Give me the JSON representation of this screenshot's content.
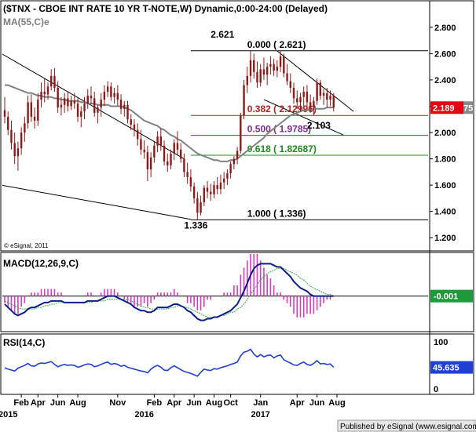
{
  "header": {
    "title": "($TNX - CBOE INT RATE 10 YR T-NOTE,W) Dynamic,0:00-24:00 (Delayed)",
    "ma_label": "MA(55,C)e",
    "watermark": "© eSignal, 2011",
    "footer": "Published by eSignal (www.esignal.com)"
  },
  "colors": {
    "up": "#8b1a1a",
    "down": "#8b1a1a",
    "ma": "#808080",
    "macd": "#0b1e8c",
    "signal": "#3ea64a",
    "hist": "#d13fbf",
    "rsi": "#1f3fd6",
    "price_tag": "#e60012",
    "fib0": "#000000",
    "fib382": "#b22222",
    "fib500": "#7b2d8c",
    "fib618": "#1a8c1a",
    "fib100": "#000000"
  },
  "chart_data": [
    {
      "type": "candlestick",
      "panel": "price",
      "ylim": [
        1.1,
        2.9
      ],
      "yticks": [
        "2.800",
        "2.600",
        "2.400",
        "2.200",
        "2.000",
        "1.800",
        "1.600",
        "1.400",
        "1.200"
      ],
      "last_price": "2.189",
      "ohlc": [
        [
          2.17,
          2.27,
          2.07,
          2.12
        ],
        [
          2.12,
          2.16,
          1.98,
          2.02
        ],
        [
          2.02,
          2.09,
          1.87,
          1.92
        ],
        [
          1.92,
          2.0,
          1.76,
          1.82
        ],
        [
          1.82,
          1.93,
          1.71,
          1.88
        ],
        [
          1.88,
          2.04,
          1.83,
          2.0
        ],
        [
          2.0,
          2.12,
          1.93,
          2.07
        ],
        [
          2.07,
          2.28,
          2.03,
          2.23
        ],
        [
          2.23,
          2.29,
          2.08,
          2.12
        ],
        [
          2.12,
          2.19,
          2.03,
          2.09
        ],
        [
          2.09,
          2.3,
          2.05,
          2.25
        ],
        [
          2.25,
          2.38,
          2.19,
          2.31
        ],
        [
          2.31,
          2.41,
          2.23,
          2.29
        ],
        [
          2.29,
          2.38,
          2.25,
          2.35
        ],
        [
          2.35,
          2.48,
          2.32,
          2.43
        ],
        [
          2.43,
          2.49,
          2.31,
          2.34
        ],
        [
          2.34,
          2.39,
          2.15,
          2.19
        ],
        [
          2.19,
          2.27,
          2.13,
          2.21
        ],
        [
          2.21,
          2.3,
          2.15,
          2.26
        ],
        [
          2.26,
          2.31,
          2.16,
          2.2
        ],
        [
          2.2,
          2.28,
          2.17,
          2.24
        ],
        [
          2.24,
          2.3,
          2.18,
          2.22
        ],
        [
          2.22,
          2.26,
          2.08,
          2.12
        ],
        [
          2.12,
          2.2,
          2.04,
          2.16
        ],
        [
          2.16,
          2.27,
          2.1,
          2.22
        ],
        [
          2.22,
          2.33,
          2.18,
          2.28
        ],
        [
          2.28,
          2.35,
          2.22,
          2.26
        ],
        [
          2.26,
          2.31,
          2.12,
          2.15
        ],
        [
          2.15,
          2.21,
          2.07,
          2.19
        ],
        [
          2.19,
          2.3,
          2.12,
          2.25
        ],
        [
          2.25,
          2.36,
          2.2,
          2.31
        ],
        [
          2.31,
          2.39,
          2.27,
          2.35
        ],
        [
          2.35,
          2.38,
          2.24,
          2.27
        ],
        [
          2.27,
          2.34,
          2.22,
          2.3
        ],
        [
          2.3,
          2.36,
          2.2,
          2.25
        ],
        [
          2.25,
          2.29,
          2.14,
          2.18
        ],
        [
          2.18,
          2.24,
          2.12,
          2.21
        ],
        [
          2.21,
          2.24,
          2.07,
          2.1
        ],
        [
          2.1,
          2.14,
          2.02,
          2.06
        ],
        [
          2.06,
          2.1,
          1.97,
          2.02
        ],
        [
          2.02,
          2.07,
          1.9,
          1.95
        ],
        [
          1.95,
          2.02,
          1.83,
          1.87
        ],
        [
          1.87,
          1.94,
          1.8,
          1.85
        ],
        [
          1.85,
          1.9,
          1.63,
          1.72
        ],
        [
          1.72,
          1.85,
          1.66,
          1.81
        ],
        [
          1.81,
          1.93,
          1.77,
          1.9
        ],
        [
          1.9,
          2.01,
          1.85,
          1.97
        ],
        [
          1.97,
          2.03,
          1.86,
          1.9
        ],
        [
          1.9,
          1.94,
          1.75,
          1.78
        ],
        [
          1.78,
          1.84,
          1.7,
          1.75
        ],
        [
          1.75,
          1.87,
          1.72,
          1.84
        ],
        [
          1.84,
          1.95,
          1.79,
          1.92
        ],
        [
          1.92,
          2.01,
          1.83,
          1.87
        ],
        [
          1.87,
          1.92,
          1.77,
          1.8
        ],
        [
          1.8,
          1.84,
          1.66,
          1.7
        ],
        [
          1.7,
          1.77,
          1.61,
          1.66
        ],
        [
          1.66,
          1.72,
          1.55,
          1.59
        ],
        [
          1.59,
          1.62,
          1.46,
          1.5
        ],
        [
          1.5,
          1.55,
          1.34,
          1.39
        ],
        [
          1.39,
          1.52,
          1.37,
          1.47
        ],
        [
          1.47,
          1.6,
          1.44,
          1.58
        ],
        [
          1.58,
          1.63,
          1.5,
          1.55
        ],
        [
          1.55,
          1.61,
          1.48,
          1.53
        ],
        [
          1.53,
          1.63,
          1.5,
          1.6
        ],
        [
          1.6,
          1.66,
          1.53,
          1.57
        ],
        [
          1.57,
          1.68,
          1.53,
          1.62
        ],
        [
          1.62,
          1.7,
          1.57,
          1.65
        ],
        [
          1.65,
          1.72,
          1.6,
          1.69
        ],
        [
          1.69,
          1.78,
          1.65,
          1.76
        ],
        [
          1.76,
          1.82,
          1.72,
          1.8
        ],
        [
          1.8,
          1.89,
          1.76,
          1.86
        ],
        [
          1.86,
          2.15,
          1.84,
          2.13
        ],
        [
          2.13,
          2.4,
          2.1,
          2.36
        ],
        [
          2.36,
          2.5,
          2.3,
          2.43
        ],
        [
          2.43,
          2.62,
          2.38,
          2.55
        ],
        [
          2.55,
          2.6,
          2.41,
          2.46
        ],
        [
          2.46,
          2.54,
          2.34,
          2.38
        ],
        [
          2.38,
          2.52,
          2.35,
          2.48
        ],
        [
          2.48,
          2.57,
          2.4,
          2.44
        ],
        [
          2.44,
          2.53,
          2.36,
          2.5
        ],
        [
          2.5,
          2.58,
          2.44,
          2.52
        ],
        [
          2.52,
          2.56,
          2.43,
          2.47
        ],
        [
          2.47,
          2.55,
          2.42,
          2.5
        ],
        [
          2.5,
          2.62,
          2.46,
          2.58
        ],
        [
          2.58,
          2.6,
          2.42,
          2.45
        ],
        [
          2.45,
          2.52,
          2.36,
          2.39
        ],
        [
          2.39,
          2.45,
          2.3,
          2.34
        ],
        [
          2.34,
          2.38,
          2.22,
          2.26
        ],
        [
          2.26,
          2.32,
          2.18,
          2.23
        ],
        [
          2.23,
          2.3,
          2.16,
          2.27
        ],
        [
          2.27,
          2.35,
          2.2,
          2.31
        ],
        [
          2.31,
          2.36,
          2.19,
          2.23
        ],
        [
          2.23,
          2.29,
          2.15,
          2.19
        ],
        [
          2.19,
          2.27,
          2.13,
          2.24
        ],
        [
          2.24,
          2.41,
          2.21,
          2.38
        ],
        [
          2.38,
          2.4,
          2.25,
          2.28
        ],
        [
          2.28,
          2.33,
          2.21,
          2.3
        ],
        [
          2.3,
          2.34,
          2.19,
          2.25
        ],
        [
          2.25,
          2.32,
          2.2,
          2.28
        ],
        [
          2.28,
          2.3,
          2.16,
          2.19
        ]
      ],
      "ma": [
        2.36,
        2.36,
        2.35,
        2.34,
        2.33,
        2.32,
        2.31,
        2.3,
        2.3,
        2.29,
        2.28,
        2.28,
        2.27,
        2.27,
        2.27,
        2.26,
        2.26,
        2.25,
        2.25,
        2.24,
        2.24,
        2.24,
        2.24,
        2.23,
        2.23,
        2.22,
        2.22,
        2.22,
        2.21,
        2.21,
        2.21,
        2.21,
        2.2,
        2.2,
        2.2,
        2.2,
        2.19,
        2.18,
        2.17,
        2.15,
        2.13,
        2.11,
        2.09,
        2.08,
        2.07,
        2.06,
        2.05,
        2.03,
        2.02,
        2.0,
        1.98,
        1.97,
        1.95,
        1.94,
        1.92,
        1.9,
        1.88,
        1.86,
        1.84,
        1.83,
        1.82,
        1.81,
        1.8,
        1.79,
        1.79,
        1.78,
        1.78,
        1.78,
        1.79,
        1.79,
        1.8,
        1.82,
        1.84,
        1.86,
        1.88,
        1.9,
        1.92,
        1.94,
        1.96,
        1.99,
        2.01,
        2.03,
        2.05,
        2.07,
        2.09,
        2.11,
        2.13,
        2.14,
        2.15,
        2.16,
        2.17,
        2.17,
        2.17,
        2.18,
        2.18,
        2.18,
        2.18,
        2.19,
        2.19,
        2.19
      ],
      "fib_levels": [
        {
          "label": "0.000 ( 2.621)",
          "value": 2.621,
          "color": "#000000"
        },
        {
          "label": "0.382 ( 2.12996)",
          "value": 2.13,
          "color": "#b22222"
        },
        {
          "label": "0.500 ( 1.9785)",
          "value": 1.9785,
          "color": "#7b2d8c"
        },
        {
          "label": "0.618 ( 1.82687)",
          "value": 1.82687,
          "color": "#1a8c1a"
        },
        {
          "label": "1.000 ( 1.336)",
          "value": 1.336,
          "color": "#000000"
        }
      ],
      "annotations": [
        "2.621",
        "1.336",
        "2.103"
      ],
      "axis_tag_fragment": "75"
    },
    {
      "type": "macd",
      "panel": "macd",
      "title": "MACD(12,26,9,C)",
      "last_value": "-0.001",
      "macd": [
        -0.05,
        -0.07,
        -0.09,
        -0.11,
        -0.12,
        -0.11,
        -0.1,
        -0.08,
        -0.07,
        -0.07,
        -0.06,
        -0.05,
        -0.04,
        -0.04,
        -0.03,
        -0.03,
        -0.03,
        -0.03,
        -0.04,
        -0.04,
        -0.04,
        -0.04,
        -0.04,
        -0.04,
        -0.04,
        -0.03,
        -0.03,
        -0.03,
        -0.03,
        -0.02,
        -0.01,
        0.0,
        0.0,
        -0.0,
        -0.01,
        -0.02,
        -0.03,
        -0.04,
        -0.05,
        -0.07,
        -0.08,
        -0.09,
        -0.09,
        -0.1,
        -0.1,
        -0.09,
        -0.07,
        -0.07,
        -0.07,
        -0.07,
        -0.06,
        -0.05,
        -0.05,
        -0.06,
        -0.07,
        -0.09,
        -0.1,
        -0.12,
        -0.14,
        -0.15,
        -0.15,
        -0.14,
        -0.14,
        -0.13,
        -0.13,
        -0.12,
        -0.11,
        -0.1,
        -0.09,
        -0.07,
        -0.05,
        -0.01,
        0.03,
        0.08,
        0.13,
        0.17,
        0.19,
        0.2,
        0.2,
        0.2,
        0.2,
        0.19,
        0.18,
        0.18,
        0.16,
        0.14,
        0.12,
        0.09,
        0.07,
        0.05,
        0.04,
        0.03,
        0.01,
        0.0,
        0.0,
        -0.0,
        -0.0,
        -0.0,
        -0.0,
        -0.0
      ],
      "signal": [
        -0.03,
        -0.04,
        -0.05,
        -0.06,
        -0.07,
        -0.08,
        -0.08,
        -0.08,
        -0.08,
        -0.08,
        -0.07,
        -0.07,
        -0.06,
        -0.06,
        -0.05,
        -0.05,
        -0.04,
        -0.04,
        -0.04,
        -0.04,
        -0.04,
        -0.04,
        -0.04,
        -0.04,
        -0.04,
        -0.04,
        -0.04,
        -0.03,
        -0.03,
        -0.03,
        -0.03,
        -0.02,
        -0.02,
        -0.02,
        -0.02,
        -0.02,
        -0.02,
        -0.02,
        -0.03,
        -0.04,
        -0.05,
        -0.06,
        -0.07,
        -0.07,
        -0.08,
        -0.08,
        -0.08,
        -0.08,
        -0.08,
        -0.08,
        -0.07,
        -0.07,
        -0.06,
        -0.06,
        -0.07,
        -0.07,
        -0.08,
        -0.09,
        -0.1,
        -0.11,
        -0.12,
        -0.13,
        -0.13,
        -0.13,
        -0.13,
        -0.12,
        -0.12,
        -0.11,
        -0.1,
        -0.1,
        -0.08,
        -0.07,
        -0.05,
        -0.02,
        0.01,
        0.04,
        0.07,
        0.1,
        0.12,
        0.14,
        0.15,
        0.16,
        0.17,
        0.17,
        0.17,
        0.16,
        0.15,
        0.14,
        0.13,
        0.11,
        0.1,
        0.08,
        0.06,
        0.05,
        0.04,
        0.03,
        0.02,
        0.01,
        0.01,
        0.0
      ],
      "ylim": [
        -0.22,
        0.26
      ]
    },
    {
      "type": "rsi",
      "panel": "rsi",
      "title": "RSI(14,C)",
      "last_value": "45.635",
      "yticks": [
        "100",
        "50",
        "0"
      ],
      "ylim": [
        0,
        100
      ],
      "values": [
        45,
        42,
        40,
        38,
        44,
        47,
        50,
        54,
        49,
        48,
        53,
        55,
        54,
        56,
        58,
        52,
        47,
        50,
        52,
        50,
        51,
        50,
        46,
        48,
        51,
        53,
        52,
        47,
        49,
        52,
        55,
        57,
        52,
        54,
        52,
        48,
        50,
        46,
        44,
        42,
        40,
        38,
        37,
        34,
        42,
        47,
        50,
        46,
        40,
        39,
        45,
        49,
        45,
        41,
        37,
        35,
        33,
        30,
        27,
        35,
        42,
        40,
        39,
        43,
        42,
        45,
        47,
        49,
        52,
        54,
        57,
        70,
        78,
        80,
        84,
        74,
        68,
        73,
        68,
        71,
        72,
        66,
        70,
        72,
        62,
        58,
        55,
        51,
        50,
        54,
        57,
        52,
        50,
        54,
        60,
        53,
        54,
        52,
        53,
        46
      ]
    }
  ],
  "time_axis": {
    "months": [
      "Feb",
      "Apr",
      "Jun",
      "Aug",
      "Nov",
      "Feb",
      "Apr",
      "Jun",
      "Aug",
      "Oct",
      "Jan",
      "Apr",
      "Jun",
      "Aug"
    ],
    "years": [
      "2015",
      "2016",
      "2017"
    ]
  }
}
